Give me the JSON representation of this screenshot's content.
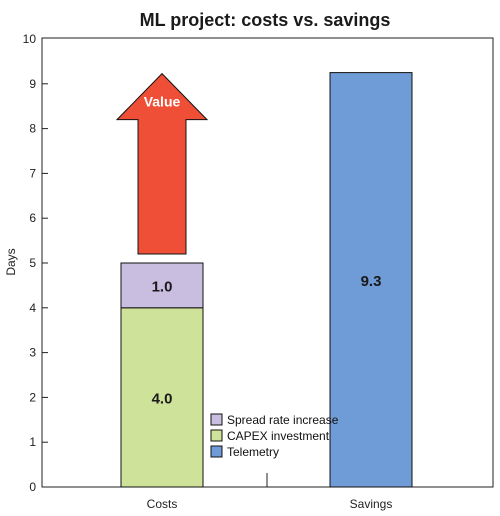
{
  "chart_data": {
    "type": "bar",
    "stacked": true,
    "title": "ML project: costs vs. savings",
    "xlabel": "",
    "ylabel": "Days",
    "ylim": [
      0,
      10
    ],
    "yticks": [
      "0",
      "1",
      "2",
      "3",
      "4",
      "5",
      "6",
      "7",
      "8",
      "9",
      "10"
    ],
    "categories": [
      "Costs",
      "Savings"
    ],
    "series": [
      {
        "name": "CAPEX investment",
        "color": "#cfe29a",
        "values": [
          4.0,
          0
        ],
        "labels": [
          "4.0",
          ""
        ]
      },
      {
        "name": "Spread rate increase",
        "color": "#c9bde0",
        "values": [
          1.0,
          0
        ],
        "labels": [
          "1.0",
          ""
        ]
      },
      {
        "name": "Telemetry",
        "color": "#6f9bd6",
        "values": [
          0,
          9.25
        ],
        "labels": [
          "",
          "9.3"
        ]
      }
    ],
    "legend": {
      "placement": "center",
      "entries": [
        "Spread rate increase",
        "CAPEX investment",
        "Telemetry"
      ]
    },
    "annotation": {
      "text": "Value",
      "type": "arrow",
      "color": "#ef4f37",
      "from": 5.2,
      "to": 8.2
    }
  }
}
